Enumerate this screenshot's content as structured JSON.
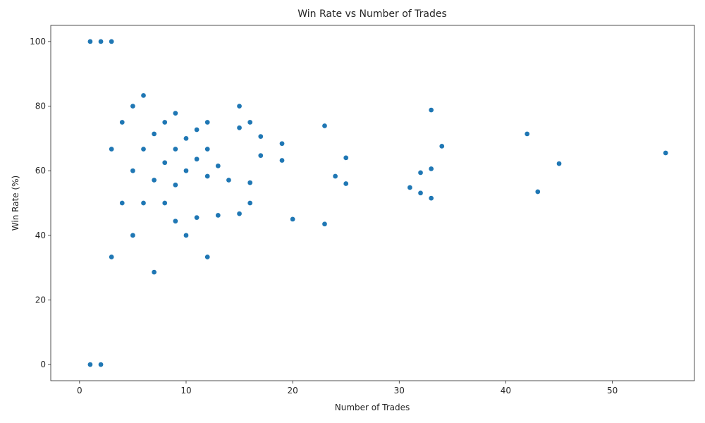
{
  "chart_data": {
    "type": "scatter",
    "title": "Win Rate vs Number of Trades",
    "xlabel": "Number of Trades",
    "ylabel": "Win Rate (%)",
    "xlim": [
      -2.7,
      57.7
    ],
    "ylim": [
      -5,
      105
    ],
    "xticks": [
      0,
      10,
      20,
      30,
      40,
      50
    ],
    "yticks": [
      0,
      20,
      40,
      60,
      80,
      100
    ],
    "grid": false,
    "legend": "none",
    "marker_color": "#1f77b4",
    "points": [
      {
        "x": 1,
        "y": 100
      },
      {
        "x": 2,
        "y": 100
      },
      {
        "x": 3,
        "y": 100
      },
      {
        "x": 1,
        "y": 0
      },
      {
        "x": 2,
        "y": 0
      },
      {
        "x": 3,
        "y": 66.7
      },
      {
        "x": 3,
        "y": 33.3
      },
      {
        "x": 4,
        "y": 75
      },
      {
        "x": 4,
        "y": 50
      },
      {
        "x": 5,
        "y": 80
      },
      {
        "x": 5,
        "y": 60
      },
      {
        "x": 5,
        "y": 40
      },
      {
        "x": 6,
        "y": 83.3
      },
      {
        "x": 6,
        "y": 66.7
      },
      {
        "x": 6,
        "y": 50
      },
      {
        "x": 7,
        "y": 71.4
      },
      {
        "x": 7,
        "y": 57.1
      },
      {
        "x": 7,
        "y": 28.6
      },
      {
        "x": 8,
        "y": 75
      },
      {
        "x": 8,
        "y": 62.5
      },
      {
        "x": 8,
        "y": 50
      },
      {
        "x": 9,
        "y": 77.8
      },
      {
        "x": 9,
        "y": 66.7
      },
      {
        "x": 9,
        "y": 55.6
      },
      {
        "x": 9,
        "y": 44.4
      },
      {
        "x": 10,
        "y": 70
      },
      {
        "x": 10,
        "y": 60
      },
      {
        "x": 10,
        "y": 40
      },
      {
        "x": 11,
        "y": 72.7
      },
      {
        "x": 11,
        "y": 63.6
      },
      {
        "x": 11,
        "y": 45.5
      },
      {
        "x": 12,
        "y": 75
      },
      {
        "x": 12,
        "y": 66.7
      },
      {
        "x": 12,
        "y": 58.3
      },
      {
        "x": 12,
        "y": 33.3
      },
      {
        "x": 13,
        "y": 61.5
      },
      {
        "x": 13,
        "y": 46.2
      },
      {
        "x": 14,
        "y": 57.1
      },
      {
        "x": 15,
        "y": 80
      },
      {
        "x": 15,
        "y": 73.3
      },
      {
        "x": 15,
        "y": 46.7
      },
      {
        "x": 16,
        "y": 75
      },
      {
        "x": 16,
        "y": 56.3
      },
      {
        "x": 16,
        "y": 50
      },
      {
        "x": 17,
        "y": 70.6
      },
      {
        "x": 17,
        "y": 64.7
      },
      {
        "x": 19,
        "y": 68.4
      },
      {
        "x": 19,
        "y": 63.2
      },
      {
        "x": 20,
        "y": 45
      },
      {
        "x": 23,
        "y": 73.9
      },
      {
        "x": 23,
        "y": 43.5
      },
      {
        "x": 24,
        "y": 58.3
      },
      {
        "x": 25,
        "y": 64
      },
      {
        "x": 25,
        "y": 56
      },
      {
        "x": 31,
        "y": 54.8
      },
      {
        "x": 32,
        "y": 59.4
      },
      {
        "x": 32,
        "y": 53.1
      },
      {
        "x": 33,
        "y": 78.8
      },
      {
        "x": 33,
        "y": 60.6
      },
      {
        "x": 33,
        "y": 51.5
      },
      {
        "x": 34,
        "y": 67.6
      },
      {
        "x": 42,
        "y": 71.4
      },
      {
        "x": 43,
        "y": 53.5
      },
      {
        "x": 45,
        "y": 62.2
      },
      {
        "x": 55,
        "y": 65.5
      }
    ]
  }
}
